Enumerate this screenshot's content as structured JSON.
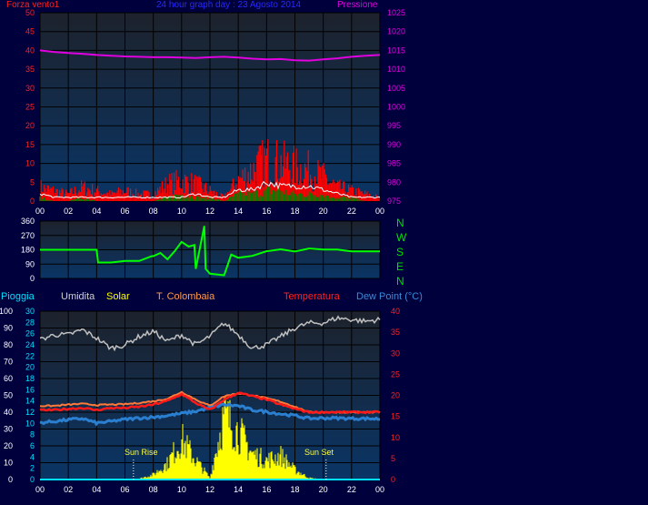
{
  "header": {
    "left_title": "Forza vento1",
    "center_title": "24 hour graph day : 23 Agosto 2014",
    "right_title": "Pressione"
  },
  "direction_labels": [
    "N",
    "W",
    "S",
    "E",
    "N"
  ],
  "bottom_header": {
    "rain": "Pioggia",
    "humidity": "Umidita",
    "solar": "Solar",
    "tcolombaia": "T. Colombaia",
    "temperature": "Temperatura",
    "dewpoint": "Dew Point (°C)"
  },
  "annotations": {
    "sunrise": "Sun Rise",
    "sunset": "Sun Set"
  },
  "colors": {
    "background": "#00003c",
    "plot_top": "#1b2230",
    "plot_bottom": "#0b3566",
    "wind": "#ff0000",
    "gust_white": "#ffffff",
    "wind_avg": "#008000",
    "pressure": "#e000e0",
    "direction": "#00ff00",
    "humidity": "#c0c0c0",
    "solar": "#ffff00",
    "tcolombaia": "#ff7a3a",
    "temperature": "#ff1a1a",
    "dewpoint": "#2a7fd0",
    "rain": "#00e0ff",
    "grid": "#000000",
    "title_blue": "#0000ff"
  },
  "chart_data": [
    {
      "type": "line",
      "title": "24 hour graph day : 23 Agosto 2014",
      "x_ticks": [
        "00",
        "02",
        "04",
        "06",
        "08",
        "10",
        "12",
        "14",
        "16",
        "18",
        "20",
        "22",
        "00"
      ],
      "y_left": {
        "label": "Forza vento1",
        "range": [
          0,
          50
        ],
        "ticks": [
          0,
          5,
          10,
          15,
          20,
          25,
          30,
          35,
          40,
          45,
          50
        ]
      },
      "y_right": {
        "label": "Pressione",
        "range": [
          975,
          1025
        ],
        "ticks": [
          975,
          980,
          985,
          990,
          995,
          1000,
          1005,
          1010,
          1015,
          1020,
          1025
        ]
      },
      "x": [
        0,
        1,
        2,
        3,
        4,
        5,
        6,
        7,
        8,
        9,
        10,
        11,
        12,
        13,
        14,
        15,
        16,
        17,
        18,
        19,
        20,
        21,
        22,
        23,
        24
      ],
      "series": [
        {
          "axis": "right",
          "values": [
            1015,
            1014.6,
            1014.3,
            1014.1,
            1013.8,
            1013.6,
            1013.4,
            1013.3,
            1013.2,
            1013.2,
            1013.1,
            1013.0,
            1013.2,
            1013.3,
            1013.1,
            1012.8,
            1012.6,
            1012.7,
            1012.4,
            1012.3,
            1012.6,
            1012.9,
            1013.3,
            1013.6,
            1013.8
          ]
        },
        {
          "axis": "left",
          "values": [
            4,
            3,
            2,
            4,
            3,
            2,
            3,
            2,
            2,
            5,
            6,
            5,
            3,
            1,
            6,
            9,
            12,
            11,
            10,
            9,
            7,
            4,
            3,
            2,
            1
          ]
        },
        {
          "axis": "left",
          "values": [
            2,
            1,
            1,
            1,
            1,
            1,
            1,
            1,
            1,
            1,
            1,
            2,
            1,
            1,
            3,
            3,
            5,
            4,
            4,
            4,
            3,
            2,
            1,
            1,
            1
          ]
        },
        {
          "axis": "left",
          "values": [
            1,
            0,
            0,
            1,
            0,
            0,
            0,
            0,
            0,
            1,
            2,
            1,
            1,
            0,
            2,
            2,
            3,
            3,
            2,
            2,
            2,
            1,
            1,
            0,
            0
          ]
        }
      ]
    },
    {
      "type": "line",
      "y_left": {
        "range": [
          0,
          360
        ],
        "ticks": [
          0,
          90,
          180,
          270,
          360
        ]
      },
      "x": [
        0,
        1,
        2,
        3,
        4,
        4.1,
        5,
        6,
        7,
        7.9,
        8,
        8.5,
        9,
        9.5,
        10,
        10.5,
        10.9,
        11,
        11.6,
        11.7,
        12,
        13,
        13.5,
        14,
        15,
        16,
        17,
        18,
        19,
        20,
        21,
        22,
        23,
        23.6,
        24
      ],
      "series": [
        {
          "values": [
            180,
            180,
            180,
            180,
            180,
            100,
            100,
            110,
            110,
            140,
            140,
            160,
            120,
            170,
            230,
            200,
            210,
            60,
            330,
            60,
            30,
            20,
            150,
            130,
            150,
            170,
            175,
            178,
            180,
            178,
            180,
            170,
            170,
            170,
            170
          ]
        }
      ]
    },
    {
      "type": "line",
      "x_ticks": [
        "00",
        "02",
        "04",
        "06",
        "08",
        "10",
        "12",
        "14",
        "16",
        "18",
        "20",
        "22",
        "00"
      ],
      "y_left_outer": {
        "label": "Umidita",
        "range": [
          0,
          100
        ],
        "ticks": [
          0,
          10,
          20,
          30,
          40,
          50,
          60,
          70,
          80,
          90,
          100
        ]
      },
      "y_left_inner": {
        "label": "Pioggia",
        "range": [
          0,
          30
        ],
        "ticks": [
          0,
          2,
          4,
          6,
          8,
          10,
          12,
          14,
          16,
          18,
          20,
          22,
          24,
          26,
          28,
          30
        ]
      },
      "y_right": {
        "label": "Temperatura / Dew Point (°C)",
        "range": [
          0,
          40
        ],
        "ticks": [
          0,
          5,
          10,
          15,
          20,
          25,
          30,
          35,
          40
        ]
      },
      "annotations": [
        {
          "label": "Sun Rise",
          "x": 6.6
        },
        {
          "label": "Sun Set",
          "x": 20.2
        }
      ],
      "x": [
        0,
        1,
        2,
        3,
        4,
        5,
        6,
        7,
        8,
        9,
        10,
        11,
        12,
        13,
        14,
        15,
        16,
        17,
        18,
        19,
        20,
        21,
        22,
        23,
        24
      ],
      "series": [
        {
          "axis": "outer",
          "values": [
            83,
            86,
            86,
            89,
            84,
            78,
            80,
            85,
            88,
            82,
            86,
            80,
            85,
            93,
            86,
            78,
            80,
            85,
            90,
            93,
            93,
            96,
            95,
            94,
            95
          ]
        },
        {
          "axis": "right",
          "values": [
            17.5,
            17.5,
            17.8,
            18,
            17.7,
            17.8,
            17.9,
            18.2,
            18.6,
            19.2,
            20.8,
            19,
            17.5,
            19.8,
            20.5,
            20,
            19.3,
            18.5,
            17.3,
            16,
            16,
            16,
            16,
            16,
            16
          ]
        },
        {
          "axis": "right",
          "values": [
            16.5,
            16.5,
            16.8,
            17,
            16.5,
            17,
            17,
            17.3,
            17.8,
            18.7,
            20.3,
            18.2,
            16.5,
            19,
            20.6,
            19.8,
            19,
            17.8,
            16.8,
            16,
            16,
            16,
            16,
            16,
            16
          ]
        },
        {
          "axis": "right",
          "values": [
            13.5,
            13.8,
            14.2,
            14.5,
            13.4,
            13.8,
            14.3,
            14.6,
            14.8,
            15.2,
            15.7,
            16.2,
            17.1,
            17.8,
            17.5,
            16.5,
            16.1,
            15.6,
            15.2,
            14.5,
            14.6,
            14.6,
            14.5,
            14.5,
            14.4
          ]
        },
        {
          "axis": "outer",
          "values": [
            0,
            0,
            0,
            0,
            0,
            0,
            0,
            0.5,
            3,
            10,
            25,
            12,
            1,
            40,
            30,
            16,
            12,
            15,
            6,
            1,
            0,
            0,
            0,
            0,
            0
          ]
        },
        {
          "axis": "inner",
          "values": [
            0,
            0,
            0,
            0,
            0,
            0,
            0,
            0,
            0,
            0,
            0,
            0,
            0,
            0,
            0,
            0,
            0,
            0,
            0,
            0,
            0,
            0,
            0,
            0,
            0
          ]
        },
        {
          "axis": "inner",
          "values": [
            0,
            0,
            0,
            0,
            0,
            0,
            0,
            0,
            0,
            0,
            0,
            0,
            0,
            0,
            0,
            0,
            0,
            0,
            0,
            0,
            0,
            0,
            0,
            0,
            0
          ]
        }
      ]
    }
  ]
}
